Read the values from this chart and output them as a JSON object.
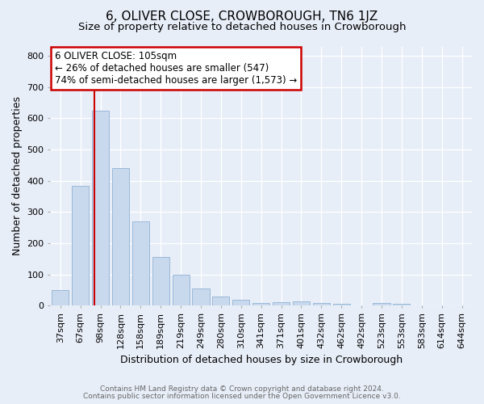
{
  "title": "6, OLIVER CLOSE, CROWBOROUGH, TN6 1JZ",
  "subtitle": "Size of property relative to detached houses in Crowborough",
  "xlabel": "Distribution of detached houses by size in Crowborough",
  "ylabel": "Number of detached properties",
  "categories": [
    "37sqm",
    "67sqm",
    "98sqm",
    "128sqm",
    "158sqm",
    "189sqm",
    "219sqm",
    "249sqm",
    "280sqm",
    "310sqm",
    "341sqm",
    "371sqm",
    "401sqm",
    "432sqm",
    "462sqm",
    "492sqm",
    "523sqm",
    "553sqm",
    "583sqm",
    "614sqm",
    "644sqm"
  ],
  "values": [
    50,
    385,
    625,
    440,
    270,
    155,
    100,
    55,
    30,
    18,
    10,
    12,
    15,
    8,
    5,
    0,
    8,
    5,
    0,
    0,
    0
  ],
  "bar_color": "#c8d9ee",
  "bar_edge_color": "#9ab8d8",
  "red_line_color": "#cc0000",
  "red_line_index": 2,
  "annotation_line1": "6 OLIVER CLOSE: 105sqm",
  "annotation_line2": "← 26% of detached houses are smaller (547)",
  "annotation_line3": "74% of semi-detached houses are larger (1,573) →",
  "annotation_box_facecolor": "white",
  "annotation_box_edgecolor": "#cc0000",
  "ylim": [
    0,
    830
  ],
  "yticks": [
    0,
    100,
    200,
    300,
    400,
    500,
    600,
    700,
    800
  ],
  "footer1": "Contains HM Land Registry data © Crown copyright and database right 2024.",
  "footer2": "Contains public sector information licensed under the Open Government Licence v3.0.",
  "bg_color": "#e8eef8",
  "plot_bg_color": "#e8eef8",
  "title_fontsize": 11,
  "subtitle_fontsize": 9.5,
  "tick_fontsize": 8,
  "label_fontsize": 9,
  "annotation_fontsize": 8.5,
  "footer_fontsize": 6.5,
  "footer_color": "#666666"
}
